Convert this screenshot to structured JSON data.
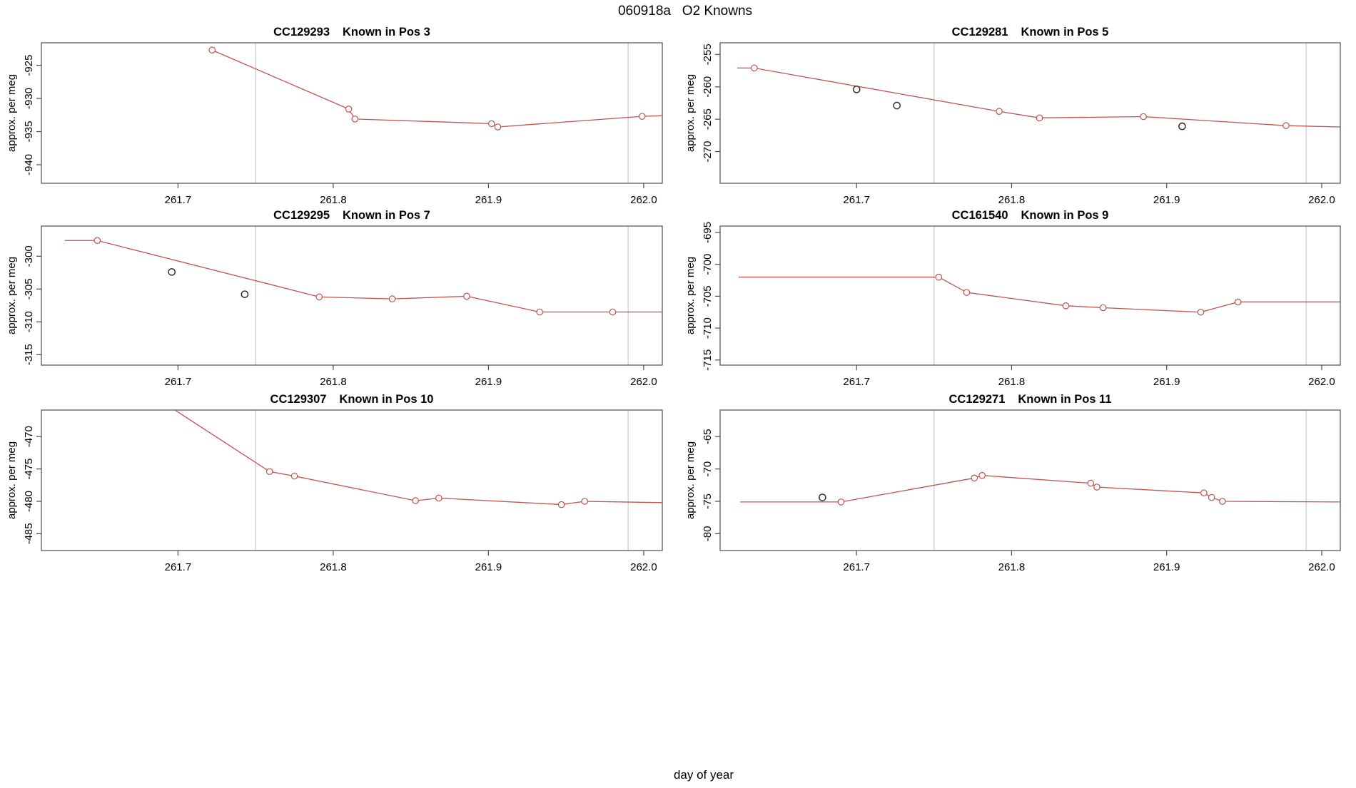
{
  "page_title": "060918a   O2 Knowns",
  "xlabel": "day of year",
  "colors": {
    "trend_line": "#c1524e",
    "marker_stroke": "#c1524e",
    "outlier_stroke": "#2a211e",
    "reference_line": "#c9c9c9",
    "axis": "#4d4d4d",
    "text": "#000000",
    "background": "#ffffff"
  },
  "chart_data": [
    {
      "type": "line",
      "id": "CC129293",
      "pos_label": "Known in Pos 3",
      "ylabel": "approx. per meg",
      "xlim": [
        261.612,
        262.012
      ],
      "ylim": [
        -942.8,
        -921.6
      ],
      "xticks": [
        "261.7",
        "261.8",
        "261.9",
        "262.0"
      ],
      "yticks": [
        "-940",
        "-935",
        "-930",
        "-925"
      ],
      "vlines": [
        261.75,
        261.99
      ],
      "line": [
        [
          261.722,
          -922.7
        ],
        [
          261.81,
          -931.6
        ],
        [
          261.814,
          -933.1
        ],
        [
          261.902,
          -933.8
        ],
        [
          261.906,
          -934.3
        ],
        [
          261.999,
          -932.7
        ],
        [
          262.012,
          -932.6
        ]
      ],
      "markers": [
        [
          261.722,
          -922.7
        ],
        [
          261.81,
          -931.6
        ],
        [
          261.814,
          -933.1
        ],
        [
          261.902,
          -933.8
        ],
        [
          261.906,
          -934.3
        ],
        [
          261.999,
          -932.7
        ]
      ],
      "outliers": []
    },
    {
      "type": "line",
      "id": "CC129281",
      "pos_label": "Known in Pos 5",
      "ylabel": "approx. per meg",
      "xlim": [
        261.612,
        262.012
      ],
      "ylim": [
        -274.9,
        -253.2
      ],
      "xticks": [
        "261.7",
        "261.8",
        "261.9",
        "262.0"
      ],
      "yticks": [
        "-270",
        "-265",
        "-260",
        "-255"
      ],
      "vlines": [
        261.75,
        261.99
      ],
      "line": [
        [
          261.623,
          -257.1
        ],
        [
          261.634,
          -257.1
        ],
        [
          261.792,
          -263.8
        ],
        [
          261.818,
          -264.8
        ],
        [
          261.885,
          -264.6
        ],
        [
          261.977,
          -266.0
        ],
        [
          262.012,
          -266.2
        ]
      ],
      "markers": [
        [
          261.634,
          -257.1
        ],
        [
          261.792,
          -263.8
        ],
        [
          261.818,
          -264.8
        ],
        [
          261.885,
          -264.6
        ],
        [
          261.977,
          -266.0
        ]
      ],
      "outliers": [
        [
          261.7,
          -260.4
        ],
        [
          261.726,
          -262.9
        ],
        [
          261.91,
          -266.1
        ]
      ]
    },
    {
      "type": "line",
      "id": "CC129295",
      "pos_label": "Known in Pos 7",
      "ylabel": "approx. per meg",
      "xlim": [
        261.612,
        262.012
      ],
      "ylim": [
        -316.6,
        -295.4
      ],
      "xticks": [
        "261.7",
        "261.8",
        "261.9",
        "262.0"
      ],
      "yticks": [
        "-315",
        "-310",
        "-305",
        "-300"
      ],
      "vlines": [
        261.75,
        261.99
      ],
      "line": [
        [
          261.627,
          -297.6
        ],
        [
          261.648,
          -297.6
        ],
        [
          261.791,
          -306.2
        ],
        [
          261.838,
          -306.5
        ],
        [
          261.886,
          -306.1
        ],
        [
          261.933,
          -308.5
        ],
        [
          261.98,
          -308.5
        ],
        [
          262.012,
          -308.5
        ]
      ],
      "markers": [
        [
          261.648,
          -297.6
        ],
        [
          261.791,
          -306.2
        ],
        [
          261.838,
          -306.5
        ],
        [
          261.886,
          -306.1
        ],
        [
          261.933,
          -308.5
        ],
        [
          261.98,
          -308.5
        ]
      ],
      "outliers": [
        [
          261.696,
          -302.4
        ],
        [
          261.743,
          -305.8
        ]
      ]
    },
    {
      "type": "line",
      "id": "CC161540",
      "pos_label": "Known in Pos 9",
      "ylabel": "approx. per meg",
      "xlim": [
        261.612,
        262.012
      ],
      "ylim": [
        -715.8,
        -694.0
      ],
      "xticks": [
        "261.7",
        "261.8",
        "261.9",
        "262.0"
      ],
      "yticks": [
        "-715",
        "-710",
        "-705",
        "-700",
        "-695"
      ],
      "vlines": [
        261.75,
        261.99
      ],
      "line": [
        [
          261.624,
          -702.0
        ],
        [
          261.753,
          -702.0
        ],
        [
          261.771,
          -704.4
        ],
        [
          261.835,
          -706.5
        ],
        [
          261.859,
          -706.8
        ],
        [
          261.922,
          -707.5
        ],
        [
          261.946,
          -705.9
        ],
        [
          262.012,
          -705.9
        ]
      ],
      "markers": [
        [
          261.753,
          -702.0
        ],
        [
          261.771,
          -704.4
        ],
        [
          261.835,
          -706.5
        ],
        [
          261.859,
          -706.8
        ],
        [
          261.922,
          -707.5
        ],
        [
          261.946,
          -705.9
        ]
      ],
      "outliers": []
    },
    {
      "type": "line",
      "id": "CC129307",
      "pos_label": "Known in Pos 10",
      "ylabel": "approx. per meg",
      "xlim": [
        261.612,
        262.012
      ],
      "ylim": [
        -487.6,
        -465.9
      ],
      "xticks": [
        "261.7",
        "261.8",
        "261.9",
        "262.0"
      ],
      "yticks": [
        "-485",
        "-480",
        "-475",
        "-470"
      ],
      "vlines": [
        261.75,
        261.99
      ],
      "line": [
        [
          261.698,
          -465.9
        ],
        [
          261.759,
          -475.4
        ],
        [
          261.775,
          -476.1
        ],
        [
          261.853,
          -479.9
        ],
        [
          261.868,
          -479.5
        ],
        [
          261.947,
          -480.5
        ],
        [
          261.962,
          -480.0
        ],
        [
          262.012,
          -480.2
        ]
      ],
      "markers": [
        [
          261.759,
          -475.4
        ],
        [
          261.775,
          -476.1
        ],
        [
          261.853,
          -479.9
        ],
        [
          261.868,
          -479.5
        ],
        [
          261.947,
          -480.5
        ],
        [
          261.962,
          -480.0
        ]
      ],
      "outliers": []
    },
    {
      "type": "line",
      "id": "CC129271",
      "pos_label": "Known in Pos 11",
      "ylabel": "approx. per meg",
      "xlim": [
        261.612,
        262.012
      ],
      "ylim": [
        -82.6,
        -60.9
      ],
      "xticks": [
        "261.7",
        "261.8",
        "261.9",
        "262.0"
      ],
      "yticks": [
        "-80",
        "-75",
        "-70",
        "-65"
      ],
      "vlines": [
        261.75,
        261.99
      ],
      "line": [
        [
          261.625,
          -75.1
        ],
        [
          261.69,
          -75.1
        ],
        [
          261.776,
          -71.4
        ],
        [
          261.781,
          -71.0
        ],
        [
          261.851,
          -72.2
        ],
        [
          261.855,
          -72.8
        ],
        [
          261.924,
          -73.7
        ],
        [
          261.929,
          -74.4
        ],
        [
          261.936,
          -75.0
        ],
        [
          262.012,
          -75.1
        ]
      ],
      "markers": [
        [
          261.69,
          -75.1
        ],
        [
          261.776,
          -71.4
        ],
        [
          261.781,
          -71.0
        ],
        [
          261.851,
          -72.2
        ],
        [
          261.855,
          -72.8
        ],
        [
          261.924,
          -73.7
        ],
        [
          261.929,
          -74.4
        ],
        [
          261.936,
          -75.0
        ]
      ],
      "outliers": [
        [
          261.678,
          -74.4
        ]
      ]
    }
  ]
}
